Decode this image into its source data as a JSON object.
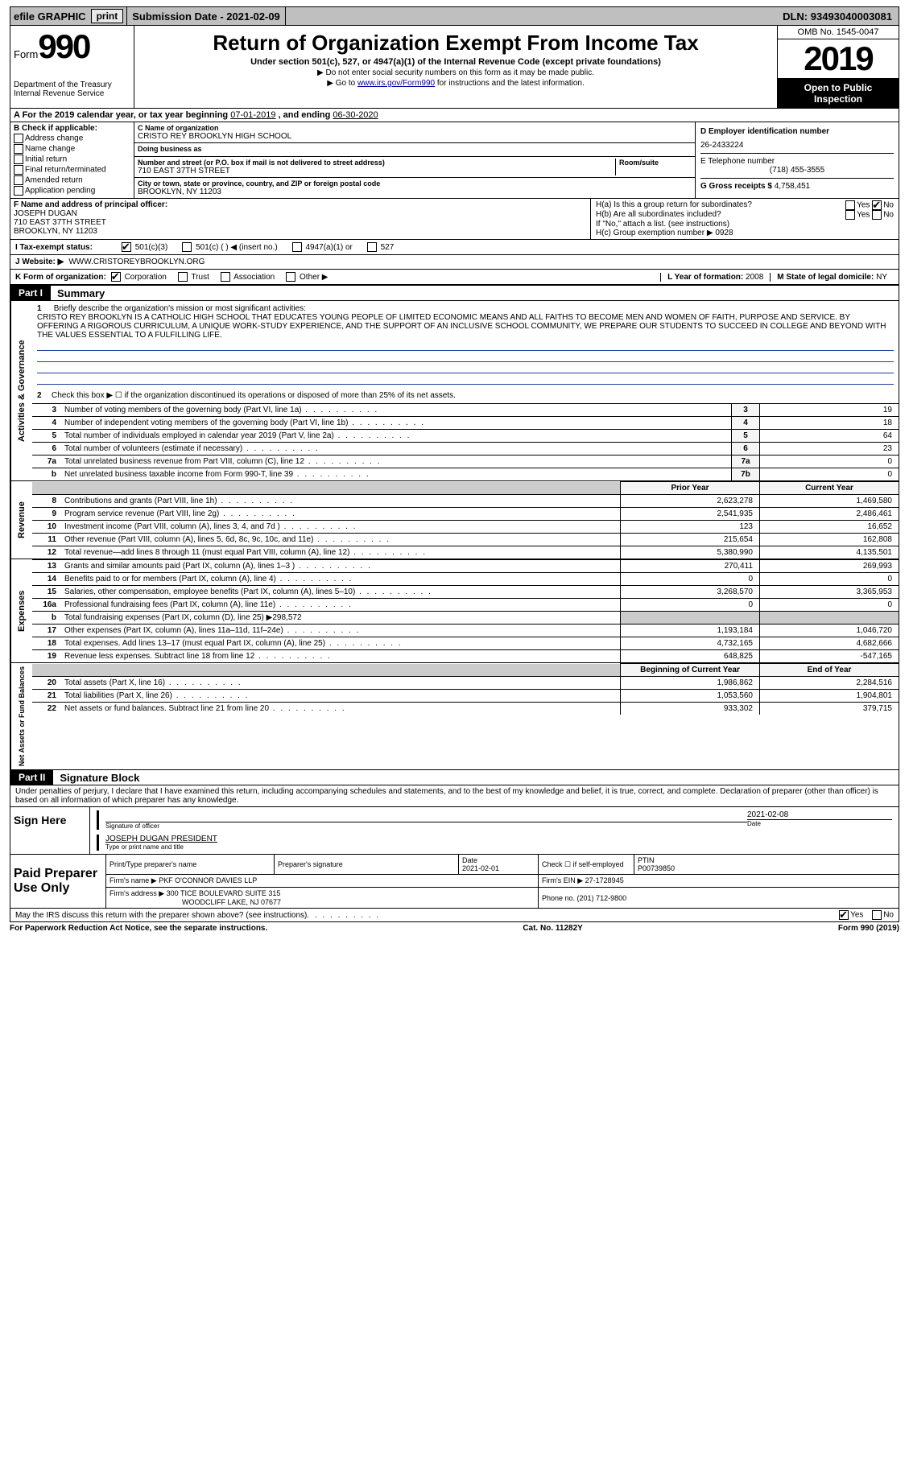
{
  "topbar": {
    "efile": "efile GRAPHIC",
    "print": "print",
    "submission_label": "Submission Date - ",
    "submission_date": "2021-02-09",
    "dln_label": "DLN: ",
    "dln": "93493040003081"
  },
  "header": {
    "form_label": "Form",
    "form_number": "990",
    "title": "Return of Organization Exempt From Income Tax",
    "subtitle": "Under section 501(c), 527, or 4947(a)(1) of the Internal Revenue Code (except private foundations)",
    "note1": "▶ Do not enter social security numbers on this form as it may be made public.",
    "note2_prefix": "▶ Go to ",
    "note2_link": "www.irs.gov/Form990",
    "note2_suffix": " for instructions and the latest information.",
    "dept": "Department of the Treasury\nInternal Revenue Service",
    "omb": "OMB No. 1545-0047",
    "tax_year": "2019",
    "open_public": "Open to Public Inspection"
  },
  "rowA": {
    "prefix": "A For the 2019 calendar year, or tax year beginning ",
    "begin": "07-01-2019",
    "mid": " , and ending ",
    "end": "06-30-2020"
  },
  "sectionB": {
    "label": "B Check if applicable:",
    "items": [
      "Address change",
      "Name change",
      "Initial return",
      "Final return/terminated",
      "Amended return",
      "Application pending"
    ]
  },
  "sectionC": {
    "name_label": "C Name of organization",
    "name": "CRISTO REY BROOKLYN HIGH SCHOOL",
    "dba_label": "Doing business as",
    "dba": "",
    "street_label": "Number and street (or P.O. box if mail is not delivered to street address)",
    "room_label": "Room/suite",
    "street": "710 EAST 37TH STREET",
    "city_label": "City or town, state or province, country, and ZIP or foreign postal code",
    "city": "BROOKLYN, NY  11203"
  },
  "sectionD": {
    "label": "D Employer identification number",
    "ein": "26-2433224"
  },
  "sectionE": {
    "label": "E Telephone number",
    "phone": "(718) 455-3555"
  },
  "sectionG": {
    "label": "G Gross receipts $ ",
    "amount": "4,758,451"
  },
  "sectionF": {
    "label": "F Name and address of principal officer:",
    "name": "JOSEPH DUGAN",
    "street": "710 EAST 37TH STREET",
    "city": "BROOKLYN, NY  11203"
  },
  "sectionH": {
    "ha": "H(a)  Is this a group return for subordinates?",
    "hb": "H(b)  Are all subordinates included?",
    "hb_note": "If \"No,\" attach a list. (see instructions)",
    "hc": "H(c)  Group exemption number ▶",
    "hc_val": "0928",
    "yes": "Yes",
    "no": "No"
  },
  "sectionI": {
    "label": "I    Tax-exempt status:",
    "opts": [
      "501(c)(3)",
      "501(c) (   ) ◀ (insert no.)",
      "4947(a)(1) or",
      "527"
    ],
    "checked": 0
  },
  "sectionJ": {
    "label": "J    Website: ▶",
    "value": "WWW.CRISTOREYBROOKLYN.ORG"
  },
  "sectionK": {
    "label": "K Form of organization:",
    "opts": [
      "Corporation",
      "Trust",
      "Association",
      "Other ▶"
    ],
    "checked": 0
  },
  "sectionL": {
    "label": "L Year of formation: ",
    "value": "2008"
  },
  "sectionM": {
    "label": "M State of legal domicile: ",
    "value": "NY"
  },
  "part1": {
    "tag": "Part I",
    "title": "Summary",
    "mission_label": "Briefly describe the organization's mission or most significant activities:",
    "mission": "CRISTO REY BROOKLYN IS A CATHOLIC HIGH SCHOOL THAT EDUCATES YOUNG PEOPLE OF LIMITED ECONOMIC MEANS AND ALL FAITHS TO BECOME MEN AND WOMEN OF FAITH, PURPOSE AND SERVICE. BY OFFERING A RIGOROUS CURRICULUM, A UNIQUE WORK-STUDY EXPERIENCE, AND THE SUPPORT OF AN INCLUSIVE SCHOOL COMMUNITY, WE PREPARE OUR STUDENTS TO SUCCEED IN COLLEGE AND BEYOND WITH THE VALUES ESSENTIAL TO A FULFILLING LIFE.",
    "line2": "Check this box ▶ ☐ if the organization discontinued its operations or disposed of more than 25% of its net assets."
  },
  "governance_rows": [
    {
      "n": "3",
      "label": "Number of voting members of the governing body (Part VI, line 1a)",
      "box": "3",
      "val": "19"
    },
    {
      "n": "4",
      "label": "Number of independent voting members of the governing body (Part VI, line 1b)",
      "box": "4",
      "val": "18"
    },
    {
      "n": "5",
      "label": "Total number of individuals employed in calendar year 2019 (Part V, line 2a)",
      "box": "5",
      "val": "64"
    },
    {
      "n": "6",
      "label": "Total number of volunteers (estimate if necessary)",
      "box": "6",
      "val": "23"
    },
    {
      "n": "7a",
      "label": "Total unrelated business revenue from Part VIII, column (C), line 12",
      "box": "7a",
      "val": "0"
    },
    {
      "n": "b",
      "label": "Net unrelated business taxable income from Form 990-T, line 39",
      "box": "7b",
      "val": "0"
    }
  ],
  "revenue_header": {
    "prior": "Prior Year",
    "current": "Current Year"
  },
  "revenue_rows": [
    {
      "n": "8",
      "label": "Contributions and grants (Part VIII, line 1h)",
      "prior": "2,623,278",
      "curr": "1,469,580"
    },
    {
      "n": "9",
      "label": "Program service revenue (Part VIII, line 2g)",
      "prior": "2,541,935",
      "curr": "2,486,461"
    },
    {
      "n": "10",
      "label": "Investment income (Part VIII, column (A), lines 3, 4, and 7d )",
      "prior": "123",
      "curr": "16,652"
    },
    {
      "n": "11",
      "label": "Other revenue (Part VIII, column (A), lines 5, 6d, 8c, 9c, 10c, and 11e)",
      "prior": "215,654",
      "curr": "162,808"
    },
    {
      "n": "12",
      "label": "Total revenue—add lines 8 through 11 (must equal Part VIII, column (A), line 12)",
      "prior": "5,380,990",
      "curr": "4,135,501"
    }
  ],
  "expense_rows": [
    {
      "n": "13",
      "label": "Grants and similar amounts paid (Part IX, column (A), lines 1–3 )",
      "prior": "270,411",
      "curr": "269,993"
    },
    {
      "n": "14",
      "label": "Benefits paid to or for members (Part IX, column (A), line 4)",
      "prior": "0",
      "curr": "0"
    },
    {
      "n": "15",
      "label": "Salaries, other compensation, employee benefits (Part IX, column (A), lines 5–10)",
      "prior": "3,268,570",
      "curr": "3,365,953"
    },
    {
      "n": "16a",
      "label": "Professional fundraising fees (Part IX, column (A), line 11e)",
      "prior": "0",
      "curr": "0"
    },
    {
      "n": "b",
      "label": "Total fundraising expenses (Part IX, column (D), line 25) ▶298,572",
      "prior": "",
      "curr": "",
      "shade": true
    },
    {
      "n": "17",
      "label": "Other expenses (Part IX, column (A), lines 11a–11d, 11f–24e)",
      "prior": "1,193,184",
      "curr": "1,046,720"
    },
    {
      "n": "18",
      "label": "Total expenses. Add lines 13–17 (must equal Part IX, column (A), line 25)",
      "prior": "4,732,165",
      "curr": "4,682,666"
    },
    {
      "n": "19",
      "label": "Revenue less expenses. Subtract line 18 from line 12",
      "prior": "648,825",
      "curr": "-547,165"
    }
  ],
  "netassets_header": {
    "prior": "Beginning of Current Year",
    "current": "End of Year"
  },
  "netassets_rows": [
    {
      "n": "20",
      "label": "Total assets (Part X, line 16)",
      "prior": "1,986,862",
      "curr": "2,284,516"
    },
    {
      "n": "21",
      "label": "Total liabilities (Part X, line 26)",
      "prior": "1,053,560",
      "curr": "1,904,801"
    },
    {
      "n": "22",
      "label": "Net assets or fund balances. Subtract line 21 from line 20",
      "prior": "933,302",
      "curr": "379,715"
    }
  ],
  "part2": {
    "tag": "Part II",
    "title": "Signature Block",
    "perjury": "Under penalties of perjury, I declare that I have examined this return, including accompanying schedules and statements, and to the best of my knowledge and belief, it is true, correct, and complete. Declaration of preparer (other than officer) is based on all information of which preparer has any knowledge."
  },
  "sign": {
    "side": "Sign Here",
    "sig_label": "Signature of officer",
    "date": "2021-02-08",
    "date_label": "Date",
    "name": "JOSEPH DUGAN  PRESIDENT",
    "name_label": "Type or print name and title"
  },
  "preparer": {
    "side": "Paid Preparer Use Only",
    "h1": "Print/Type preparer's name",
    "h2": "Preparer's signature",
    "h3": "Date",
    "date": "2021-02-01",
    "h4": "Check ☐ if self-employed",
    "h5": "PTIN",
    "ptin": "P00739850",
    "firm_name_label": "Firm's name    ▶",
    "firm_name": "PKF O'CONNOR DAVIES LLP",
    "firm_ein_label": "Firm's EIN ▶",
    "firm_ein": "27-1728945",
    "firm_addr_label": "Firm's address ▶",
    "firm_addr1": "300 TICE BOULEVARD SUITE 315",
    "firm_addr2": "WOODCLIFF LAKE, NJ  07677",
    "phone_label": "Phone no. ",
    "phone": "(201) 712-9800"
  },
  "discuss": {
    "text": "May the IRS discuss this return with the preparer shown above? (see instructions)",
    "yes": "Yes",
    "no": "No"
  },
  "footer": {
    "left": "For Paperwork Reduction Act Notice, see the separate instructions.",
    "mid": "Cat. No. 11282Y",
    "right_form": "Form ",
    "right_num": "990",
    "right_year": " (2019)"
  },
  "section_labels": {
    "gov": "Activities & Governance",
    "rev": "Revenue",
    "exp": "Expenses",
    "net": "Net Assets or Fund Balances"
  }
}
